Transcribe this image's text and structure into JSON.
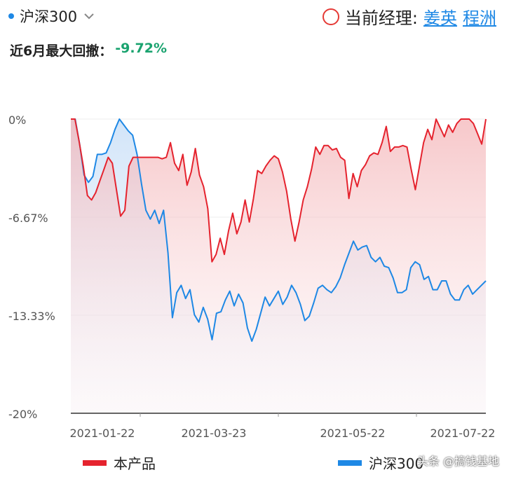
{
  "header": {
    "benchmark_label": "沪深300",
    "manager_prefix": "当前经理:",
    "managers": [
      "姜英",
      "程洲"
    ]
  },
  "drawdown": {
    "label": "近6月最大回撤：",
    "value": "-9.72%"
  },
  "chart_data": {
    "type": "area",
    "y_ticks": [
      "0%",
      "-6.67%",
      "-13.33%",
      "-20%"
    ],
    "ylim": [
      -20,
      0
    ],
    "x_ticks": [
      "2021-01-22",
      "2021-03-23",
      "2021-05-22",
      "2021-07-22"
    ],
    "grid": true,
    "legend_position": "bottom",
    "series": [
      {
        "name": "本产品",
        "color": "#e5232e",
        "values": [
          0,
          0,
          -1.5,
          -3.2,
          -5.2,
          -5.5,
          -5,
          -4.2,
          -3.4,
          -2.6,
          -3,
          -4.8,
          -6.6,
          -6.2,
          -3.2,
          -2.6,
          -2.6,
          -2.6,
          -2.6,
          -2.6,
          -2.6,
          -2.6,
          -2.7,
          -2.6,
          -1.6,
          -3,
          -3.5,
          -2.4,
          -4.5,
          -3.6,
          -2,
          -3.8,
          -4.6,
          -6.1,
          -9.7,
          -9.2,
          -8.1,
          -9.2,
          -7.6,
          -6.4,
          -7.8,
          -7,
          -5.5,
          -7,
          -5.4,
          -3.5,
          -3.7,
          -3.2,
          -2.8,
          -2.5,
          -2.7,
          -3.6,
          -4.9,
          -6.8,
          -8.3,
          -7,
          -5.5,
          -4.6,
          -3.4,
          -1.9,
          -2.4,
          -1.8,
          -1.8,
          -2.1,
          -2,
          -2.6,
          -2.8,
          -5.4,
          -3.7,
          -4.6,
          -3.5,
          -3.1,
          -2.5,
          -2.3,
          -2.4,
          -1.6,
          -0.5,
          -2.2,
          -1.9,
          -1.9,
          -1.8,
          -1.9,
          -3.4,
          -4.8,
          -3.2,
          -1.6,
          -0.7,
          -1.4,
          0,
          -0.6,
          -1.2,
          -0.4,
          -0.9,
          -0.3,
          0,
          0,
          0,
          -0.3,
          -1,
          -1.7,
          0
        ]
      },
      {
        "name": "沪深300",
        "color": "#1e88e5",
        "values": [
          0,
          0,
          -1.7,
          -3.8,
          -4.3,
          -3.9,
          -2.4,
          -2.4,
          -2.3,
          -1.6,
          -0.7,
          0,
          -0.4,
          -0.8,
          -1.1,
          -2.4,
          -4.4,
          -6.2,
          -6.8,
          -6.2,
          -7.1,
          -6.2,
          -9.1,
          -13.5,
          -11.8,
          -11.3,
          -12.2,
          -11.6,
          -13.3,
          -13.8,
          -12.8,
          -13.6,
          -15,
          -13.2,
          -13.1,
          -12.3,
          -11.7,
          -12.7,
          -11.9,
          -12.5,
          -14.2,
          -15.1,
          -14.3,
          -13.2,
          -12.1,
          -12.7,
          -12.2,
          -11.7,
          -12.6,
          -12.1,
          -11.3,
          -11.8,
          -12.6,
          -13.7,
          -13.4,
          -12.5,
          -11.5,
          -11.3,
          -11.6,
          -11.8,
          -11.4,
          -10.8,
          -9.9,
          -9.1,
          -8.3,
          -8.9,
          -8.7,
          -8.6,
          -9.4,
          -9.7,
          -9.4,
          -10,
          -10.1,
          -10.8,
          -11.8,
          -11.8,
          -11.6,
          -10.1,
          -9.7,
          -9.9,
          -10.9,
          -10.7,
          -11.6,
          -11.6,
          -11,
          -11,
          -11.9,
          -12.3,
          -12.3,
          -11.6,
          -11.3,
          -11.9,
          -11.6,
          -11.3,
          -11
        ]
      }
    ]
  },
  "legend": {
    "product_label": "本产品",
    "benchmark_label": "沪深300"
  },
  "watermark": "头条 @搞钱基地"
}
